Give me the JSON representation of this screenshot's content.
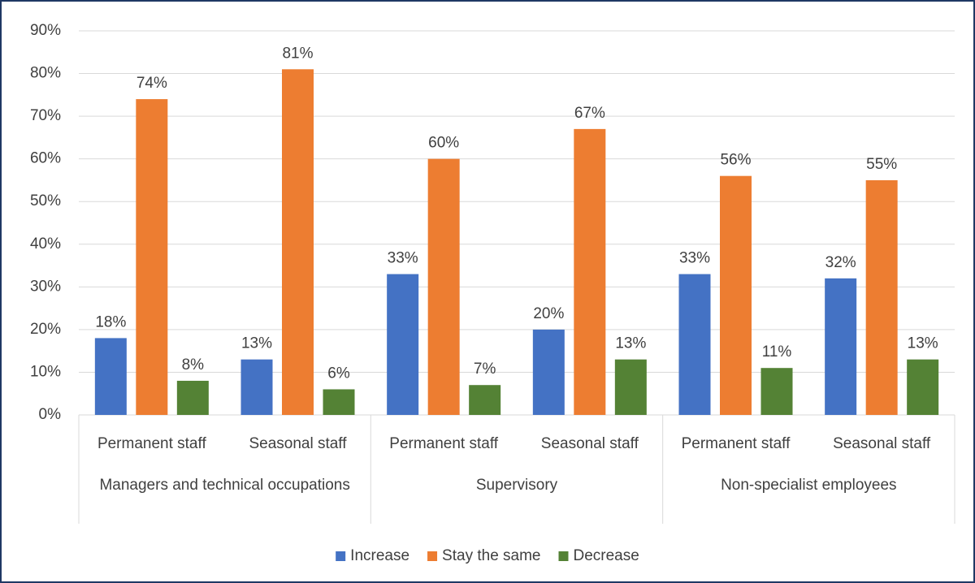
{
  "chart_data": {
    "type": "bar",
    "categories": [
      "Permanent staff",
      "Seasonal staff",
      "Permanent staff",
      "Seasonal staff",
      "Permanent staff",
      "Seasonal staff"
    ],
    "category_groups": [
      "Managers and technical occupations",
      "Supervisory",
      "Non-specialist employees"
    ],
    "series": [
      {
        "name": "Increase",
        "color": "#4472c4",
        "values": [
          18,
          13,
          33,
          20,
          33,
          32
        ],
        "value_labels": [
          "18%",
          "13%",
          "33%",
          "20%",
          "33%",
          "32%"
        ]
      },
      {
        "name": "Stay the same",
        "color": "#ed7d31",
        "values": [
          74,
          81,
          60,
          67,
          56,
          55
        ],
        "value_labels": [
          "74%",
          "81%",
          "60%",
          "67%",
          "56%",
          "55%"
        ]
      },
      {
        "name": "Decrease",
        "color": "#548235",
        "values": [
          8,
          6,
          7,
          13,
          11,
          13
        ],
        "value_labels": [
          "8%",
          "6%",
          "7%",
          "13%",
          "11%",
          "13%"
        ]
      }
    ],
    "ylim": [
      0,
      90
    ],
    "yticks": [
      {
        "value": 0,
        "label": "0%"
      },
      {
        "value": 10,
        "label": "10%"
      },
      {
        "value": 20,
        "label": "20%"
      },
      {
        "value": 30,
        "label": "30%"
      },
      {
        "value": 40,
        "label": "40%"
      },
      {
        "value": 50,
        "label": "50%"
      },
      {
        "value": 60,
        "label": "60%"
      },
      {
        "value": 70,
        "label": "70%"
      },
      {
        "value": 80,
        "label": "80%"
      },
      {
        "value": 90,
        "label": "90%"
      }
    ],
    "grid": true,
    "legend": "bottom"
  }
}
